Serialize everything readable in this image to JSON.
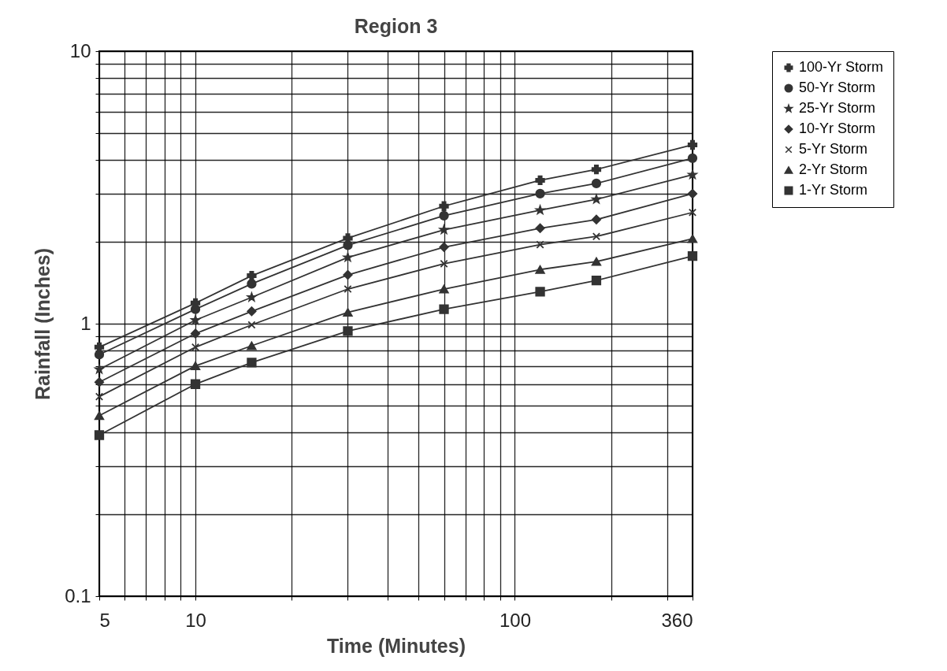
{
  "chart_data": {
    "type": "line",
    "title": "Region 3",
    "xlabel": "Time (Minutes)",
    "ylabel": "Rainfall (Inches)",
    "x": [
      5,
      10,
      15,
      30,
      60,
      120,
      180,
      360
    ],
    "log": "xy",
    "grid": true,
    "legend": "right",
    "line_style": "solid",
    "xlim": [
      5,
      360
    ],
    "xticks": [
      5,
      {
        "value": 6,
        "label": null
      },
      {
        "value": 7,
        "label": null
      },
      {
        "value": 8,
        "label": null
      },
      {
        "value": 9,
        "label": null
      },
      10,
      {
        "value": 20,
        "label": null
      },
      {
        "value": 30,
        "label": null
      },
      {
        "value": 40,
        "label": null
      },
      {
        "value": 50,
        "label": null
      },
      {
        "value": 60,
        "label": null
      },
      {
        "value": 70,
        "label": null
      },
      {
        "value": 80,
        "label": null
      },
      {
        "value": 90,
        "label": null
      },
      100,
      {
        "value": 200,
        "label": null
      },
      {
        "value": 300,
        "label": null
      },
      360
    ],
    "ylim": [
      0.1,
      10
    ],
    "yticks": [
      0.1,
      {
        "value": 0.2,
        "label": null
      },
      {
        "value": 0.3,
        "label": null
      },
      {
        "value": 0.4,
        "label": null
      },
      {
        "value": 0.5,
        "label": null
      },
      {
        "value": 0.6,
        "label": null
      },
      {
        "value": 0.7,
        "label": null
      },
      {
        "value": 0.8,
        "label": null
      },
      {
        "value": 0.9,
        "label": null
      },
      1,
      {
        "value": 2,
        "label": null
      },
      {
        "value": 3,
        "label": null
      },
      {
        "value": 4,
        "label": null
      },
      {
        "value": 5,
        "label": null
      },
      {
        "value": 6,
        "label": null
      },
      {
        "value": 7,
        "label": null
      },
      {
        "value": 8,
        "label": null
      },
      {
        "value": 9,
        "label": null
      },
      10
    ],
    "series": [
      {
        "name": "100-Yr Storm",
        "color": "#333333",
        "marker": "plus",
        "values": [
          0.82,
          1.19,
          1.5,
          2.06,
          2.7,
          3.36,
          3.68,
          4.53
        ]
      },
      {
        "name": "50-Yr Storm",
        "color": "#333333",
        "marker": "circle",
        "values": [
          0.77,
          1.13,
          1.4,
          1.94,
          2.49,
          3.0,
          3.27,
          4.05
        ]
      },
      {
        "name": "25-Yr Storm",
        "color": "#333333",
        "marker": "star",
        "values": [
          0.68,
          1.03,
          1.25,
          1.75,
          2.21,
          2.61,
          2.86,
          3.52
        ]
      },
      {
        "name": "10-Yr Storm",
        "color": "#333333",
        "marker": "diamond",
        "values": [
          0.61,
          0.92,
          1.11,
          1.51,
          1.91,
          2.24,
          2.41,
          3.0
        ]
      },
      {
        "name": "5-Yr Storm",
        "color": "#333333",
        "marker": "cross",
        "values": [
          0.54,
          0.82,
          0.99,
          1.34,
          1.66,
          1.95,
          2.09,
          2.56
        ]
      },
      {
        "name": "2-Yr Storm",
        "color": "#333333",
        "marker": "triangle",
        "values": [
          0.46,
          0.7,
          0.83,
          1.1,
          1.34,
          1.58,
          1.69,
          2.05
        ]
      },
      {
        "name": "1-Yr Storm",
        "color": "#333333",
        "marker": "square",
        "values": [
          0.39,
          0.6,
          0.72,
          0.94,
          1.13,
          1.31,
          1.44,
          1.77
        ]
      }
    ]
  }
}
